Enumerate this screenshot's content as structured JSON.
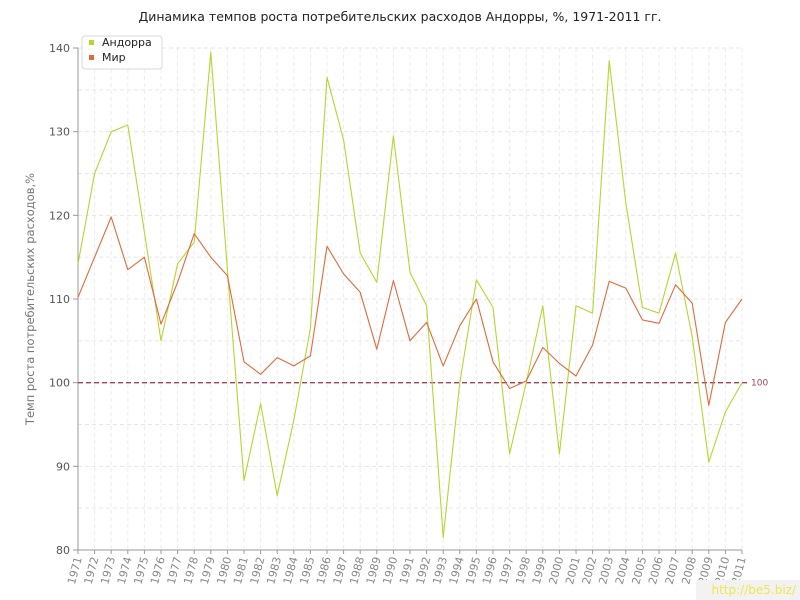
{
  "chart_data": {
    "type": "line",
    "title": "Динамика темпов роста потребительских расходов Андорры, %, 1971-2011 гг.",
    "xlabel": "",
    "ylabel": "Темп роста потребительских расходов,%",
    "ylim": [
      80,
      140
    ],
    "yticks": [
      80,
      90,
      100,
      110,
      120,
      130,
      140
    ],
    "x": [
      1971,
      1972,
      1973,
      1974,
      1975,
      1976,
      1977,
      1978,
      1979,
      1980,
      1981,
      1982,
      1983,
      1984,
      1985,
      1986,
      1987,
      1988,
      1989,
      1990,
      1991,
      1992,
      1993,
      1994,
      1995,
      1996,
      1997,
      1998,
      1999,
      2000,
      2001,
      2002,
      2003,
      2004,
      2005,
      2006,
      2007,
      2008,
      2009,
      2010,
      2011
    ],
    "series": [
      {
        "name": "Андорра",
        "color": "#b8d432",
        "values": [
          114.2,
          125,
          130,
          130.8,
          118,
          105,
          114.2,
          116.8,
          139.5,
          113.5,
          88.3,
          97.5,
          86.5,
          95.5,
          106.5,
          136.5,
          129,
          115.5,
          112,
          129.5,
          113.2,
          109.2,
          81.5,
          100,
          112.3,
          109,
          91.5,
          100,
          109.2,
          91.5,
          109.2,
          108.3,
          138.5,
          121.5,
          109,
          108.3,
          115.5,
          105.5,
          90.5,
          96.5,
          100
        ]
      },
      {
        "name": "Мир",
        "color": "#e06a3c",
        "values": [
          110.2,
          115,
          119.8,
          113.5,
          115,
          107,
          112,
          117.8,
          115,
          112.8,
          102.5,
          101,
          103,
          102,
          103.2,
          116.3,
          113,
          110.8,
          104,
          112.2,
          105,
          107.2,
          102,
          106.8,
          110,
          102.5,
          99.3,
          100.2,
          104.2,
          102.3,
          100.8,
          104.5,
          112.1,
          111.3,
          107.5,
          107.1,
          111.7,
          109.5,
          97.3,
          107.2,
          110
        ]
      }
    ],
    "reference_line": {
      "value": 100,
      "label": "100",
      "color": "#a0445a"
    },
    "legend": "top-left",
    "grid": true
  },
  "watermark": "http://be5.biz/"
}
